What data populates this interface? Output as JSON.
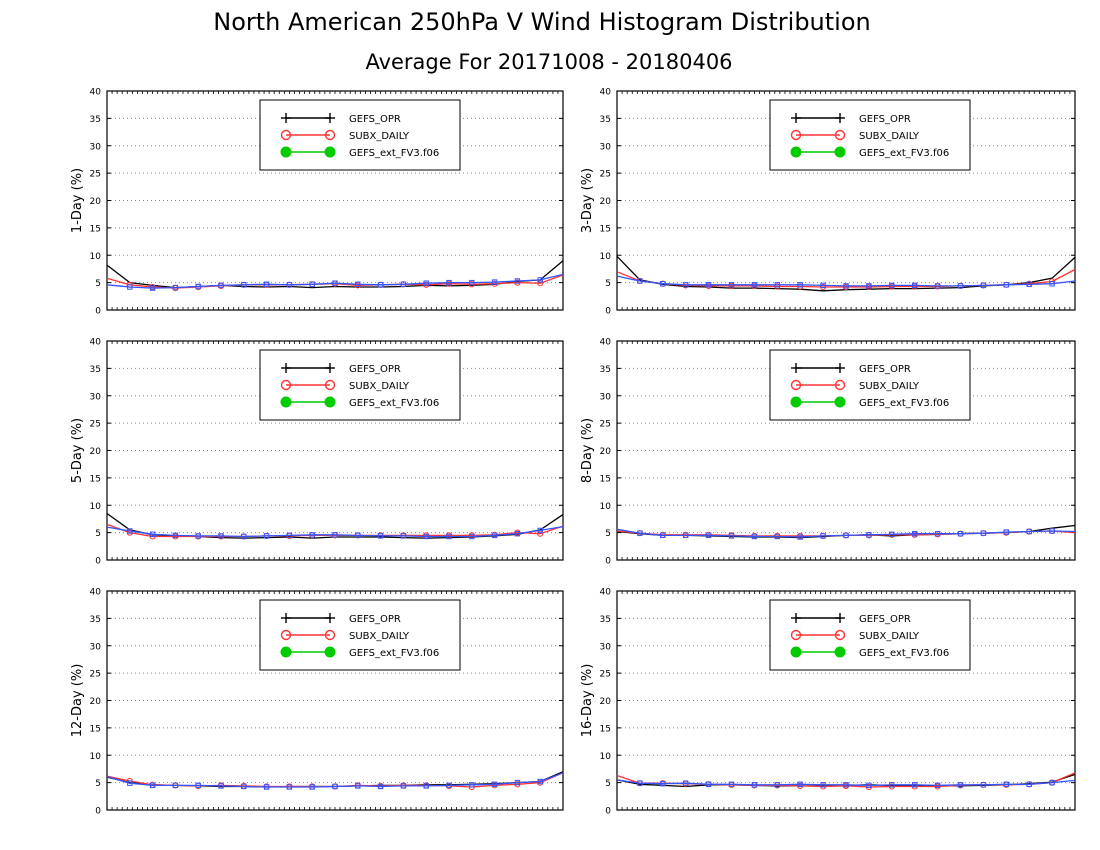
{
  "figure": {
    "title": "North American 250hPa V Wind Histogram Distribution",
    "subtitle": "Average For 20171008 - 20180406"
  },
  "legend_entries": [
    {
      "name": "GEFS_OPR",
      "color": "#000000",
      "marker": "plus"
    },
    {
      "name": "SUBX_DAILY",
      "color": "#ff3333",
      "marker": "open-circle"
    },
    {
      "name": "GEFS_ext_FV3.f06",
      "color": "#00cc00",
      "marker": "filled-circle"
    }
  ],
  "overlay_series": {
    "color": "#3355ff",
    "marker": "open-square"
  },
  "chart_data": [
    {
      "type": "line",
      "ylabel": "1-Day (%)",
      "ylim": [
        0,
        40
      ],
      "yticks": [
        0,
        5,
        10,
        15,
        20,
        25,
        30,
        35,
        40
      ],
      "grid": true,
      "legend_placement": "top-center",
      "x": [
        1,
        2,
        3,
        4,
        5,
        6,
        7,
        8,
        9,
        10,
        11,
        12,
        13,
        14,
        15,
        16,
        17,
        18,
        19,
        20,
        21
      ],
      "series": [
        {
          "name": "GEFS_OPR",
          "values": [
            8.2,
            5.0,
            4.5,
            4.1,
            4.3,
            4.5,
            4.3,
            4.2,
            4.3,
            4.1,
            4.3,
            4.2,
            4.2,
            4.3,
            4.5,
            4.4,
            4.5,
            4.7,
            5.2,
            5.5,
            9.0
          ]
        },
        {
          "name": "SUBX_DAILY",
          "values": [
            5.8,
            4.6,
            4.2,
            4.0,
            4.2,
            4.4,
            4.6,
            4.6,
            4.6,
            4.7,
            4.8,
            4.5,
            4.6,
            4.7,
            4.6,
            4.8,
            4.7,
            4.8,
            5.0,
            4.9,
            6.4
          ]
        },
        {
          "name": "GEFS_ext_FV3.f06",
          "values": [
            4.6,
            4.2,
            4.0,
            4.1,
            4.3,
            4.5,
            4.6,
            4.7,
            4.6,
            4.7,
            4.9,
            4.7,
            4.6,
            4.7,
            4.9,
            5.0,
            5.0,
            5.1,
            5.3,
            5.5,
            6.5
          ]
        }
      ]
    },
    {
      "type": "line",
      "ylabel": "3-Day (%)",
      "ylim": [
        0,
        40
      ],
      "yticks": [
        0,
        5,
        10,
        15,
        20,
        25,
        30,
        35,
        40
      ],
      "grid": true,
      "legend_placement": "top-center",
      "x": [
        1,
        2,
        3,
        4,
        5,
        6,
        7,
        8,
        9,
        10,
        11,
        12,
        13,
        14,
        15,
        16,
        17,
        18,
        19,
        20,
        21
      ],
      "series": [
        {
          "name": "GEFS_OPR",
          "values": [
            9.8,
            5.5,
            4.7,
            4.3,
            4.2,
            4.0,
            4.0,
            3.9,
            3.8,
            3.5,
            3.7,
            3.8,
            3.9,
            3.9,
            4.0,
            4.1,
            4.4,
            4.6,
            5.0,
            5.8,
            9.6
          ]
        },
        {
          "name": "SUBX_DAILY",
          "values": [
            7.0,
            5.3,
            4.8,
            4.5,
            4.4,
            4.4,
            4.4,
            4.3,
            4.3,
            4.2,
            4.2,
            4.2,
            4.3,
            4.3,
            4.3,
            4.4,
            4.5,
            4.6,
            4.8,
            5.2,
            7.4
          ]
        },
        {
          "name": "GEFS_ext_FV3.f06",
          "values": [
            6.2,
            5.3,
            4.8,
            4.6,
            4.6,
            4.6,
            4.6,
            4.6,
            4.6,
            4.5,
            4.4,
            4.4,
            4.5,
            4.5,
            4.4,
            4.4,
            4.5,
            4.6,
            4.7,
            4.8,
            5.3
          ]
        }
      ]
    },
    {
      "type": "line",
      "ylabel": "5-Day (%)",
      "ylim": [
        0,
        40
      ],
      "yticks": [
        0,
        5,
        10,
        15,
        20,
        25,
        30,
        35,
        40
      ],
      "grid": true,
      "legend_placement": "top-center",
      "x": [
        1,
        2,
        3,
        4,
        5,
        6,
        7,
        8,
        9,
        10,
        11,
        12,
        13,
        14,
        15,
        16,
        17,
        18,
        19,
        20,
        21
      ],
      "series": [
        {
          "name": "GEFS_OPR",
          "values": [
            8.5,
            5.5,
            4.6,
            4.4,
            4.3,
            4.1,
            4.0,
            4.1,
            4.2,
            4.0,
            4.2,
            4.2,
            4.2,
            4.1,
            4.0,
            4.1,
            4.2,
            4.4,
            4.7,
            5.5,
            8.3
          ]
        },
        {
          "name": "SUBX_DAILY",
          "values": [
            6.5,
            5.0,
            4.3,
            4.3,
            4.3,
            4.3,
            4.3,
            4.4,
            4.4,
            4.5,
            4.5,
            4.5,
            4.5,
            4.5,
            4.5,
            4.5,
            4.5,
            4.6,
            5.0,
            4.8,
            6.2
          ]
        },
        {
          "name": "GEFS_ext_FV3.f06",
          "values": [
            6.0,
            5.3,
            4.7,
            4.5,
            4.4,
            4.4,
            4.3,
            4.4,
            4.5,
            4.6,
            4.6,
            4.5,
            4.4,
            4.4,
            4.3,
            4.3,
            4.3,
            4.5,
            4.8,
            5.4,
            6.1
          ]
        }
      ]
    },
    {
      "type": "line",
      "ylabel": "8-Day (%)",
      "ylim": [
        0,
        40
      ],
      "yticks": [
        0,
        5,
        10,
        15,
        20,
        25,
        30,
        35,
        40
      ],
      "grid": true,
      "legend_placement": "top-center",
      "x": [
        1,
        2,
        3,
        4,
        5,
        6,
        7,
        8,
        9,
        10,
        11,
        12,
        13,
        14,
        15,
        16,
        17,
        18,
        19,
        20,
        21
      ],
      "series": [
        {
          "name": "GEFS_OPR",
          "values": [
            5.2,
            4.8,
            4.5,
            4.5,
            4.4,
            4.3,
            4.2,
            4.2,
            4.1,
            4.3,
            4.5,
            4.6,
            4.4,
            4.6,
            4.7,
            4.8,
            4.9,
            5.0,
            5.2,
            5.8,
            6.3
          ]
        },
        {
          "name": "SUBX_DAILY",
          "values": [
            5.3,
            4.9,
            4.6,
            4.6,
            4.6,
            4.5,
            4.4,
            4.4,
            4.4,
            4.4,
            4.5,
            4.5,
            4.6,
            4.6,
            4.7,
            4.8,
            4.9,
            5.0,
            5.2,
            5.3,
            5.0
          ]
        },
        {
          "name": "GEFS_ext_FV3.f06",
          "values": [
            5.6,
            4.9,
            4.5,
            4.5,
            4.5,
            4.4,
            4.3,
            4.3,
            4.2,
            4.4,
            4.5,
            4.6,
            4.7,
            4.8,
            4.8,
            4.8,
            4.9,
            5.1,
            5.2,
            5.3,
            5.2
          ]
        }
      ]
    },
    {
      "type": "line",
      "ylabel": "12-Day (%)",
      "ylim": [
        0,
        40
      ],
      "yticks": [
        0,
        5,
        10,
        15,
        20,
        25,
        30,
        35,
        40
      ],
      "grid": true,
      "legend_placement": "top-center",
      "x": [
        1,
        2,
        3,
        4,
        5,
        6,
        7,
        8,
        9,
        10,
        11,
        12,
        13,
        14,
        15,
        16,
        17,
        18,
        19,
        20,
        21
      ],
      "series": [
        {
          "name": "GEFS_OPR",
          "values": [
            6.0,
            5.0,
            4.6,
            4.5,
            4.4,
            4.3,
            4.3,
            4.2,
            4.3,
            4.3,
            4.3,
            4.4,
            4.5,
            4.5,
            4.6,
            4.6,
            4.7,
            4.8,
            5.0,
            5.2,
            7.0
          ]
        },
        {
          "name": "SUBX_DAILY",
          "values": [
            6.2,
            5.3,
            4.6,
            4.5,
            4.4,
            4.5,
            4.4,
            4.3,
            4.3,
            4.3,
            4.3,
            4.5,
            4.4,
            4.5,
            4.5,
            4.4,
            4.2,
            4.5,
            4.7,
            5.0,
            6.8
          ]
        },
        {
          "name": "GEFS_ext_FV3.f06",
          "values": [
            6.1,
            4.9,
            4.5,
            4.5,
            4.5,
            4.4,
            4.3,
            4.2,
            4.2,
            4.2,
            4.3,
            4.4,
            4.3,
            4.4,
            4.4,
            4.5,
            4.6,
            4.7,
            5.0,
            5.2,
            6.8
          ]
        }
      ]
    },
    {
      "type": "line",
      "ylabel": "16-Day (%)",
      "ylim": [
        0,
        40
      ],
      "yticks": [
        0,
        5,
        10,
        15,
        20,
        25,
        30,
        35,
        40
      ],
      "grid": true,
      "legend_placement": "top-center",
      "x": [
        1,
        2,
        3,
        4,
        5,
        6,
        7,
        8,
        9,
        10,
        11,
        12,
        13,
        14,
        15,
        16,
        17,
        18,
        19,
        20,
        21
      ],
      "series": [
        {
          "name": "GEFS_OPR",
          "values": [
            5.5,
            4.7,
            4.5,
            4.3,
            4.6,
            4.6,
            4.5,
            4.4,
            4.4,
            4.4,
            4.5,
            4.6,
            4.5,
            4.5,
            4.4,
            4.4,
            4.5,
            4.6,
            4.8,
            5.1,
            6.5
          ]
        },
        {
          "name": "SUBX_DAILY",
          "values": [
            6.3,
            4.9,
            4.9,
            4.8,
            4.7,
            4.6,
            4.5,
            4.5,
            4.4,
            4.3,
            4.4,
            4.2,
            4.3,
            4.3,
            4.3,
            4.5,
            4.6,
            4.6,
            4.7,
            5.0,
            6.8
          ]
        },
        {
          "name": "GEFS_ext_FV3.f06",
          "values": [
            5.5,
            4.9,
            4.8,
            4.9,
            4.7,
            4.7,
            4.6,
            4.6,
            4.7,
            4.6,
            4.6,
            4.5,
            4.6,
            4.6,
            4.5,
            4.6,
            4.6,
            4.7,
            4.7,
            5.0,
            5.4
          ]
        }
      ]
    }
  ]
}
